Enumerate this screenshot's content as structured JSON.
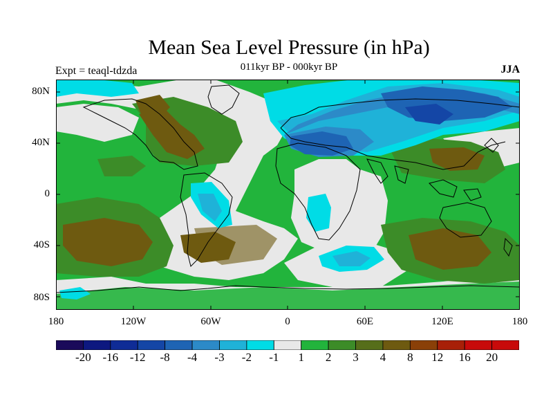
{
  "title": "Mean Sea Level Pressure (in hPa)",
  "experiment": "Expt = teaql-tdzda",
  "subtitle": "011kyr BP - 000kyr BP",
  "season": "JJA",
  "y_axis_labels": [
    "80N",
    "40N",
    "0",
    "40S",
    "80S"
  ],
  "x_axis_labels": [
    "180",
    "120W",
    "60W",
    "0",
    "60E",
    "120E",
    "180"
  ],
  "colorbar": {
    "labels": [
      "-20",
      "-16",
      "-12",
      "-8",
      "-4",
      "-3",
      "-2",
      "-1",
      "1",
      "2",
      "3",
      "4",
      "8",
      "12",
      "16",
      "20"
    ],
    "colors": [
      "#1a0a5a",
      "#0d1880",
      "#0f2c96",
      "#1446a6",
      "#1e64b4",
      "#2c8ac8",
      "#1fb2d8",
      "#00dce6",
      "#e8e8e8",
      "#22b43c",
      "#3c8c28",
      "#566e1a",
      "#6e5a10",
      "#8a4008",
      "#a82008",
      "#c80a0a"
    ]
  },
  "map_colors": {
    "ocean_green": "#22b43c",
    "neutral": "#e8e8e8",
    "brown": "#6e5a10",
    "olive": "#3c8c28",
    "cyan": "#00dce6",
    "light_blue": "#1fb2d8",
    "mid_blue": "#2c8ac8",
    "dark_blue": "#1e64b4",
    "deep_blue": "#1446a6",
    "coast": "#000000"
  }
}
